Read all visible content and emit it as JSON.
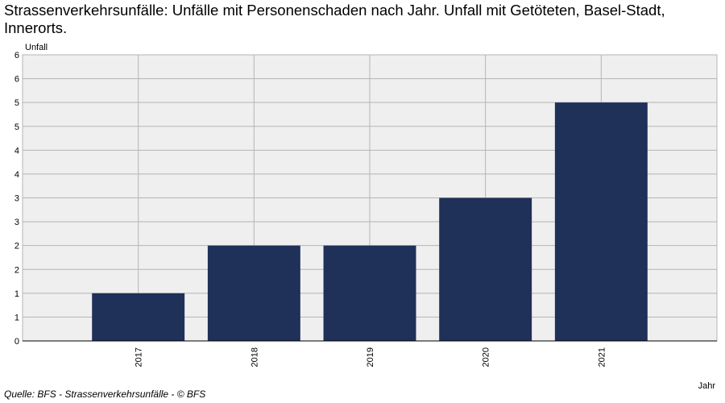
{
  "chart_data": {
    "type": "bar",
    "title": "Strassenverkehrsunfälle: Unfälle mit Personenschaden nach Jahr. Unfall mit Getöteten, Basel-Stadt, Innerorts.",
    "categories": [
      "2017",
      "2018",
      "2019",
      "2020",
      "2021"
    ],
    "values": [
      1,
      2,
      2,
      3,
      5
    ],
    "xlabel": "Jahr",
    "ylabel": "Unfall",
    "ylim": [
      0,
      6
    ],
    "ytick_labels": [
      "0",
      "1",
      "1",
      "2",
      "2",
      "3",
      "3",
      "4",
      "4",
      "5",
      "5",
      "6",
      "6"
    ],
    "grid": true,
    "bar_color": "#1f3059",
    "plot_bg": "#efefef",
    "grid_color": "#b5b5b5"
  },
  "source": "Quelle: BFS - Strassenverkehrsunfälle - © BFS"
}
